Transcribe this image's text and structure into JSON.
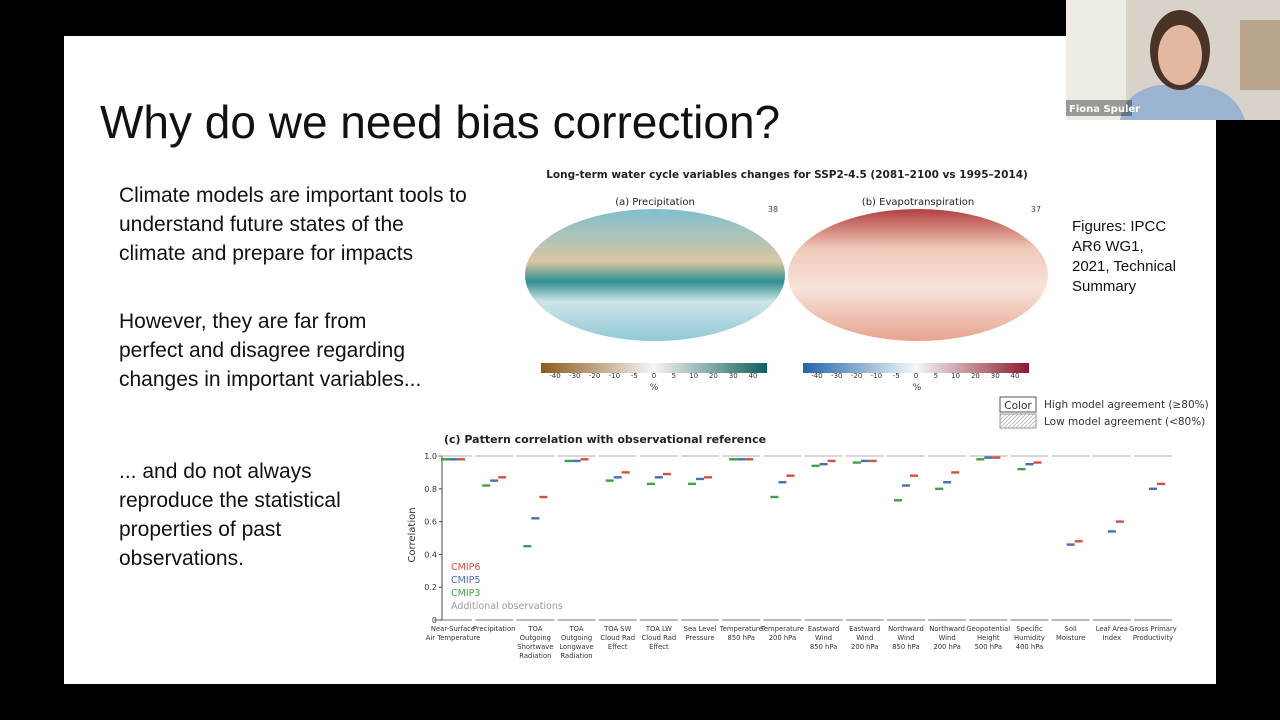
{
  "window": {
    "participant_name": "Fiona Spuler"
  },
  "slide": {
    "title": "Why do we need bias correction?",
    "paragraphs": [
      [
        "Climate models are important tools to",
        "understand future states of the",
        "climate and prepare for impacts"
      ],
      [
        "However, they are far from",
        "perfect and disagree regarding",
        "changes in important variables..."
      ],
      [
        "... and do not always",
        "reproduce the statistical",
        "properties of past",
        "observations."
      ]
    ],
    "figure_credit": [
      "Figures: IPCC",
      "AR6 WG1,",
      "2021, Technical",
      "Summary"
    ],
    "maps": {
      "title": "Long-term water cycle variables changes for SSP2-4.5 (2081–2100 vs 1995–2014)",
      "panels": [
        {
          "label": "(a) Precipitation",
          "count": "38",
          "colorbar_ticks": [
            "-40",
            "-30",
            "-20",
            "-10",
            "-5",
            "0",
            "5",
            "10",
            "20",
            "30",
            "40"
          ],
          "unit": "%"
        },
        {
          "label": "(b) Evapotranspiration",
          "count": "37",
          "colorbar_ticks": [
            "-40",
            "-30",
            "-20",
            "-10",
            "-5",
            "0",
            "5",
            "10",
            "20",
            "30",
            "40"
          ],
          "unit": "%"
        }
      ],
      "agreement_legend": {
        "color_box": "Color",
        "high": "High model agreement (≥80%)",
        "low": "Low model agreement (<80%)"
      }
    },
    "correlation_chart": {
      "type": "scatter",
      "title": "(c) Pattern correlation with observational reference",
      "y_label": "Correlation",
      "ylim": [
        0,
        1
      ],
      "yticks": [
        {
          "value": 0,
          "label": "0"
        },
        {
          "value": 0.2,
          "label": "0.2"
        },
        {
          "value": 0.4,
          "label": "0.4"
        },
        {
          "value": 0.6,
          "label": "0.6"
        },
        {
          "value": 0.8,
          "label": "0.8"
        },
        {
          "value": 1,
          "label": "1.0"
        }
      ],
      "categories": [
        [
          "Near-Surface",
          "Air Temperature"
        ],
        [
          "Precipitation"
        ],
        [
          "TOA",
          "Outgoing",
          "Shortwave",
          "Radiation"
        ],
        [
          "TOA",
          "Outgoing",
          "Longwave",
          "Radiation"
        ],
        [
          "TOA SW",
          "Cloud Rad",
          "Effect"
        ],
        [
          "TOA LW",
          "Cloud Rad",
          "Effect"
        ],
        [
          "Sea Level",
          "Pressure"
        ],
        [
          "Temperature",
          "850 hPa"
        ],
        [
          "Temperature",
          "200 hPa"
        ],
        [
          "Eastward",
          "Wind",
          "850 hPa"
        ],
        [
          "Eastward",
          "Wind",
          "200 hPa"
        ],
        [
          "Northward",
          "Wind",
          "850 hPa"
        ],
        [
          "Northward",
          "Wind",
          "200 hPa"
        ],
        [
          "Geopotential",
          "Height",
          "500 hPa"
        ],
        [
          "Specific",
          "Humidity",
          "400 hPa"
        ],
        [
          "Soil",
          "Moisture"
        ],
        [
          "Leaf Area",
          "Index"
        ],
        [
          "Gross Primary",
          "Productivity"
        ]
      ],
      "series": [
        {
          "name": "CMIP6",
          "color": "#d6503f",
          "values": [
            0.98,
            0.87,
            0.75,
            0.98,
            0.9,
            0.89,
            0.87,
            0.98,
            0.88,
            0.97,
            0.97,
            0.88,
            0.9,
            0.99,
            0.96,
            0.48,
            0.6,
            0.83
          ]
        },
        {
          "name": "CMIP5",
          "color": "#4a6db3",
          "values": [
            0.98,
            0.85,
            0.62,
            0.97,
            0.87,
            0.87,
            0.86,
            0.98,
            0.84,
            0.95,
            0.97,
            0.82,
            0.84,
            0.99,
            0.95,
            0.46,
            0.54,
            0.8
          ]
        },
        {
          "name": "CMIP3",
          "color": "#3e9f4c",
          "values": [
            0.98,
            0.82,
            0.45,
            0.97,
            0.85,
            0.83,
            0.83,
            0.98,
            0.75,
            0.94,
            0.96,
            0.73,
            0.8,
            0.98,
            0.92,
            null,
            null,
            null
          ]
        }
      ],
      "additional_observations": "Additional observations"
    }
  }
}
